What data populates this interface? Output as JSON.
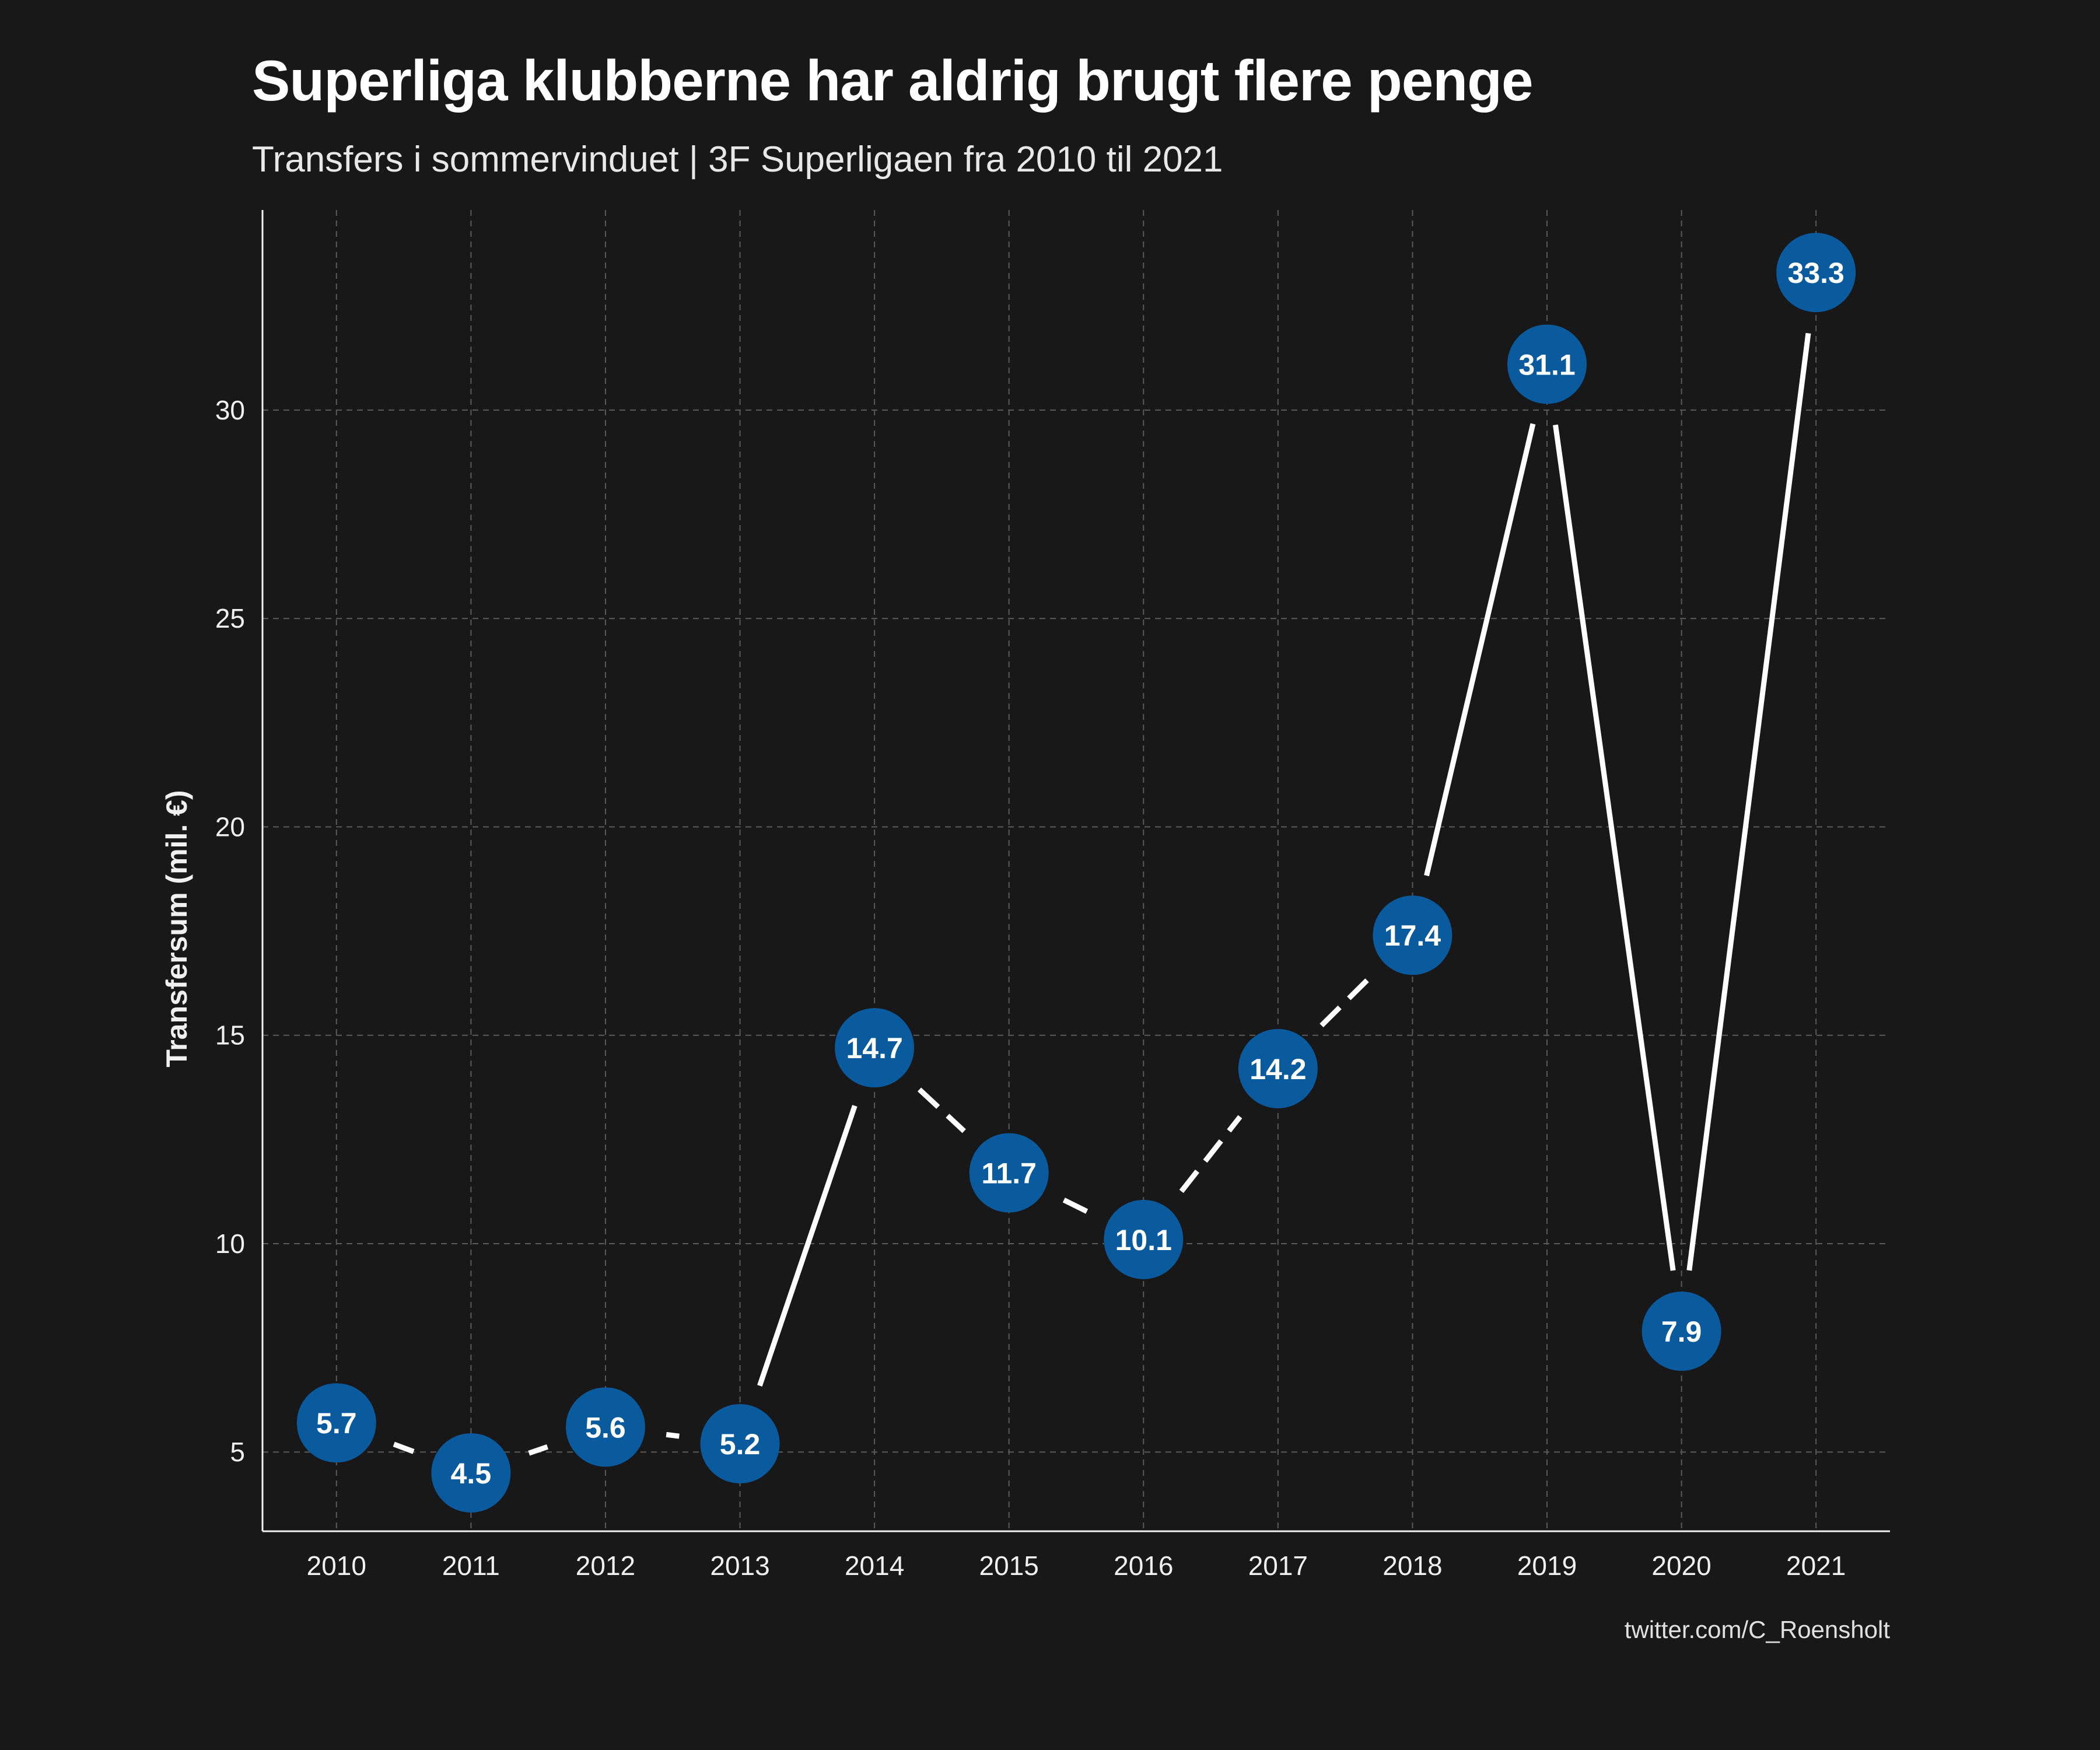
{
  "title": "Superliga klubberne har aldrig brugt flere penge",
  "subtitle": "Transfers i sommervinduet | 3F Superligaen fra 2010 til 2021",
  "caption": "twitter.com/C_Roensholt",
  "colors": {
    "background": "#181818",
    "point_fill": "#0a5a9e",
    "line": "#ffffff",
    "grid": "#5a5a5a"
  },
  "chart_data": {
    "type": "line",
    "x": [
      2010,
      2011,
      2012,
      2013,
      2014,
      2015,
      2016,
      2017,
      2018,
      2019,
      2020,
      2021
    ],
    "series": [
      {
        "values": [
          5.7,
          4.5,
          5.6,
          5.2,
          14.7,
          11.7,
          10.1,
          14.2,
          17.4,
          31.1,
          7.9,
          33.3
        ],
        "labels": [
          "5.7",
          "4.5",
          "5.6",
          "5.2",
          "14.7",
          "11.7",
          "10.1",
          "14.2",
          "17.4",
          "31.1",
          "7.9",
          "33.3"
        ]
      }
    ],
    "xlabel": "",
    "ylabel": "Transfersum (mil. €)",
    "xlim": [
      2009.45,
      2021.55
    ],
    "ylim": [
      3.1,
      34.8
    ],
    "yticks": [
      5,
      10,
      15,
      20,
      25,
      30
    ],
    "xticks": [
      2010,
      2011,
      2012,
      2013,
      2014,
      2015,
      2016,
      2017,
      2018,
      2019,
      2020,
      2021
    ],
    "line_styles": [
      "dashed",
      "dashed",
      "dashed",
      "solid",
      "dashed",
      "dashed",
      "dashed",
      "dashed",
      "solid",
      "solid",
      "solid"
    ],
    "grid": true,
    "legend": "none"
  }
}
